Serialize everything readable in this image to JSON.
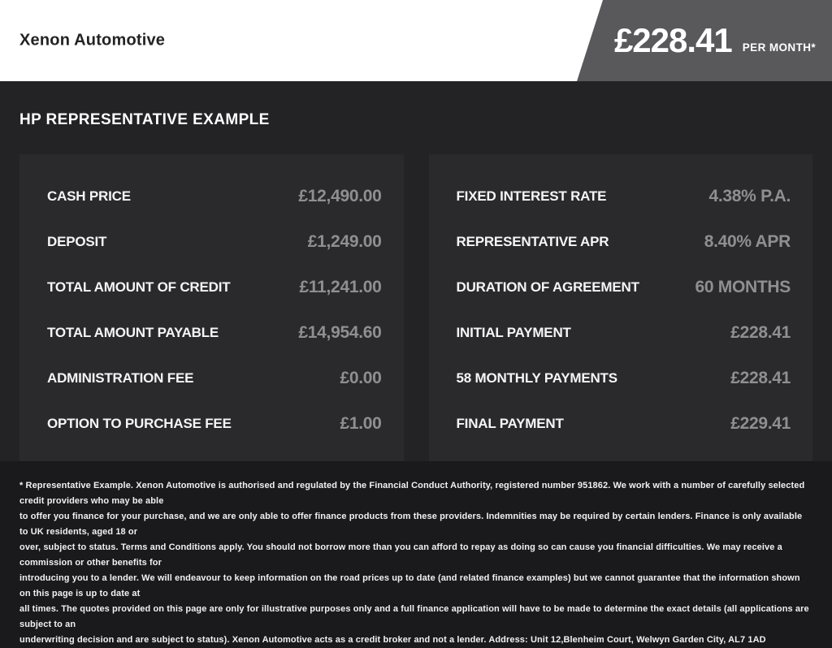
{
  "header": {
    "brand": "Xenon Automotive",
    "price_badge": {
      "amount": "£228.41",
      "period": "PER MONTH*"
    }
  },
  "main": {
    "heading": "HP REPRESENTATIVE EXAMPLE",
    "left_panel": {
      "rows": [
        {
          "label": "CASH PRICE",
          "value": "£12,490.00"
        },
        {
          "label": "DEPOSIT",
          "value": "£1,249.00"
        },
        {
          "label": "TOTAL AMOUNT OF CREDIT",
          "value": "£11,241.00"
        },
        {
          "label": "TOTAL AMOUNT PAYABLE",
          "value": "£14,954.60"
        },
        {
          "label": "ADMINISTRATION FEE",
          "value": "£0.00"
        },
        {
          "label": "OPTION TO PURCHASE FEE",
          "value": "£1.00"
        }
      ]
    },
    "right_panel": {
      "rows": [
        {
          "label": "FIXED INTEREST RATE",
          "value": "4.38% P.A."
        },
        {
          "label": "REPRESENTATIVE APR",
          "value": "8.40% APR"
        },
        {
          "label": "DURATION OF AGREEMENT",
          "value": "60 MONTHS"
        },
        {
          "label": "INITIAL PAYMENT",
          "value": "£228.41"
        },
        {
          "label": "58 MONTHLY PAYMENTS",
          "value": "£228.41"
        },
        {
          "label": "FINAL PAYMENT",
          "value": "£229.41"
        }
      ]
    }
  },
  "footer": {
    "disclaimer": "* Representative Example. Xenon Automotive is authorised and regulated by the Financial Conduct Authority, registered number 951862. We work with a number of carefully selected credit providers who may be able\nto offer you finance for your purchase, and we are only able to offer finance products from these providers. Indemnities may be required by certain lenders. Finance is only available to UK residents, aged 18 or\nover, subject to status. Terms and Conditions apply. You should not borrow more than you can afford to repay as doing so can cause you financial difficulties. We may receive a commission or other benefits for\nintroducing you to a lender. We will endeavour to keep information on the road prices up to date (and related finance examples) but we cannot guarantee that the information shown on this page is up to date at\nall times. The quotes provided on this page are only for illustrative purposes only and a full finance application will have to be made to determine the exact details (all applications are subject to an\nunderwriting decision and are subject to status). Xenon Automotive acts as a credit broker and not a lender. Address: Unit 12,Blenheim Court, Welwyn Garden City, AL7 1AD"
  },
  "colors": {
    "header_background": "#ffffff",
    "badge_background": "#59585a",
    "page_background": "#232224",
    "panel_background": "#2a292c",
    "footer_background": "#1a191b",
    "label_text": "#f5f5f5",
    "value_text": "#8f8f91"
  }
}
